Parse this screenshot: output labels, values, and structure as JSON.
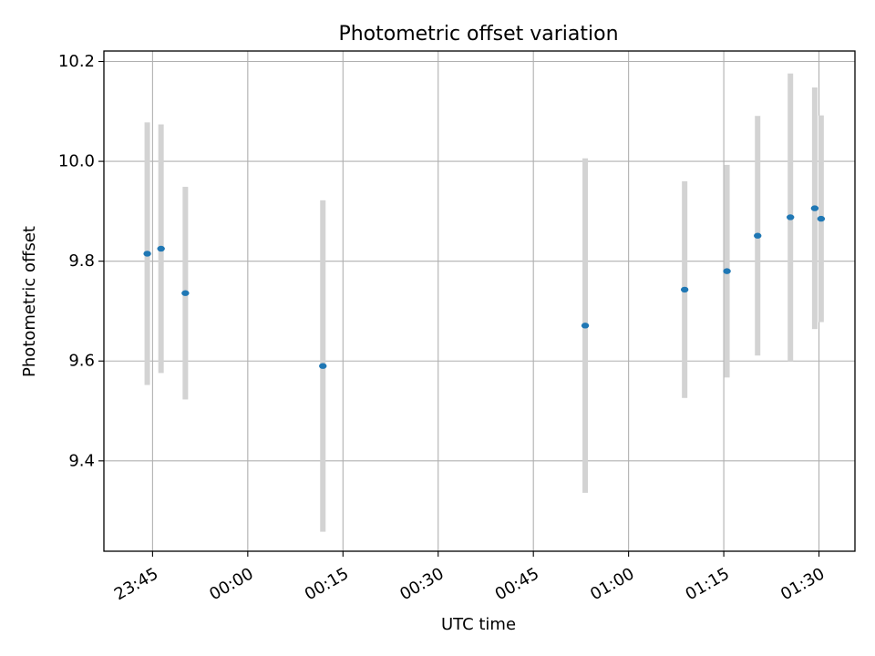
{
  "chart_data": {
    "type": "scatter",
    "title": "Photometric offset variation",
    "xlabel": "UTC time",
    "ylabel": "Photometric offset",
    "x_axis_kind": "time",
    "x_tick_labels": [
      "23:45",
      "00:00",
      "00:15",
      "00:30",
      "00:45",
      "01:00",
      "01:15",
      "01:30"
    ],
    "xlim": [
      "23:37:20",
      "01:35:40"
    ],
    "y_ticks": [
      9.4,
      9.6,
      9.8,
      10.0,
      10.2
    ],
    "ylim": [
      9.219,
      10.221
    ],
    "grid": true,
    "colors": {
      "points": "#1f77b4",
      "errorbars": "#d3d3d3",
      "grid": "#b0b0b0"
    },
    "series": [
      {
        "x": [
          "23:44:10",
          "23:46:20",
          "23:50:10",
          "00:11:50",
          "00:53:10",
          "01:08:50",
          "01:15:30",
          "01:20:20",
          "01:25:30",
          "01:29:20",
          "01:30:20"
        ],
        "y": [
          9.815,
          9.825,
          9.736,
          9.59,
          9.671,
          9.743,
          9.78,
          9.851,
          9.888,
          9.906,
          9.885
        ],
        "yerr": [
          0.263,
          0.249,
          0.213,
          0.332,
          0.335,
          0.217,
          0.213,
          0.24,
          0.288,
          0.242,
          0.207
        ]
      }
    ]
  }
}
